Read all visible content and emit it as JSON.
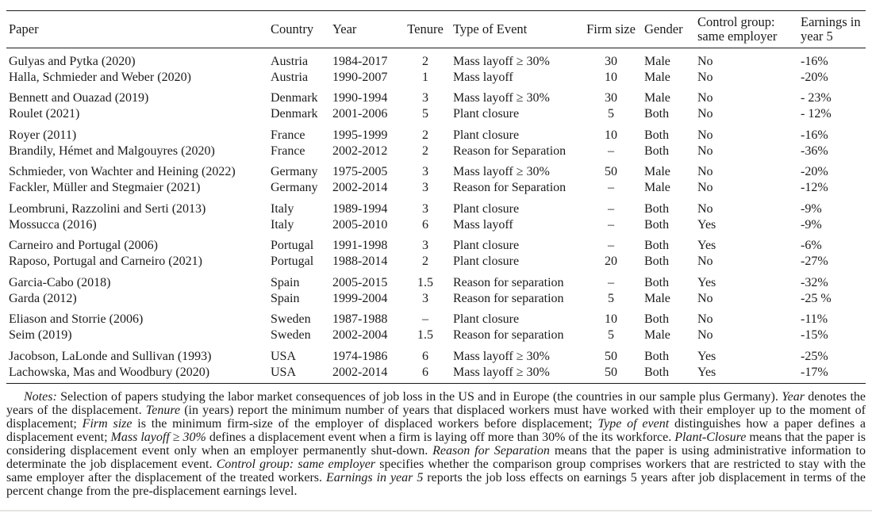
{
  "table": {
    "columns": [
      {
        "label": "Paper"
      },
      {
        "label": "Country"
      },
      {
        "label": "Year"
      },
      {
        "label": "Tenure"
      },
      {
        "label": "Type of Event"
      },
      {
        "label": "Firm size"
      },
      {
        "label": "Gender"
      },
      {
        "label": "Control group: same employer"
      },
      {
        "label": "Earnings in year 5"
      }
    ],
    "groups": [
      {
        "country": "Austria",
        "rows": [
          [
            "Gulyas and Pytka (2020)",
            "Austria",
            "1984-2017",
            "2",
            "Mass layoff ≥ 30%",
            "30",
            "Male",
            "No",
            "-16%"
          ],
          [
            "Halla, Schmieder and Weber (2020)",
            "Austria",
            "1990-2007",
            "1",
            "Mass layoff",
            "10",
            "Male",
            "No",
            "-20%"
          ]
        ]
      },
      {
        "country": "Denmark",
        "rows": [
          [
            "Bennett and Ouazad (2019)",
            "Denmark",
            "1990-1994",
            "3",
            "Mass layoff ≥ 30%",
            "30",
            "Male",
            "No",
            "- 23%"
          ],
          [
            "Roulet (2021)",
            "Denmark",
            "2001-2006",
            "5",
            "Plant closure",
            "5",
            "Both",
            "No",
            "- 12%"
          ]
        ]
      },
      {
        "country": "France",
        "rows": [
          [
            "Royer (2011)",
            "France",
            "1995-1999",
            "2",
            "Plant closure",
            "10",
            "Both",
            "No",
            "-16%"
          ],
          [
            "Brandily, Hémet and Malgouyres (2020)",
            "France",
            "2002-2012",
            "2",
            "Reason for Separation",
            "–",
            "Both",
            "No",
            "-36%"
          ]
        ]
      },
      {
        "country": "Germany",
        "rows": [
          [
            "Schmieder, von Wachter and Heining (2022)",
            "Germany",
            "1975-2005",
            "3",
            "Mass layoff ≥ 30%",
            "50",
            "Male",
            "No",
            "-20%"
          ],
          [
            "Fackler, Müller and Stegmaier (2021)",
            "Germany",
            "2002-2014",
            "3",
            "Reason for Separation",
            "–",
            "Male",
            "No",
            "-12%"
          ]
        ]
      },
      {
        "country": "Italy",
        "rows": [
          [
            "Leombruni, Razzolini and Serti (2013)",
            "Italy",
            "1989-1994",
            "3",
            "Plant closure",
            "–",
            "Both",
            "No",
            "-9%"
          ],
          [
            "Mossucca (2016)",
            "Italy",
            "2005-2010",
            "6",
            "Mass layoff",
            "–",
            "Both",
            "Yes",
            "-9%"
          ]
        ]
      },
      {
        "country": "Portugal",
        "rows": [
          [
            "Carneiro and Portugal (2006)",
            "Portugal",
            "1991-1998",
            "3",
            "Plant closure",
            "–",
            "Both",
            "Yes",
            "-6%"
          ],
          [
            "Raposo, Portugal and Carneiro (2021)",
            "Portugal",
            "1988-2014",
            "2",
            "Plant closure",
            "20",
            "Both",
            "No",
            "-27%"
          ]
        ]
      },
      {
        "country": "Spain",
        "rows": [
          [
            "Garcia-Cabo (2018)",
            "Spain",
            "2005-2015",
            "1.5",
            "Reason for separation",
            "–",
            "Both",
            "Yes",
            "-32%"
          ],
          [
            "Garda (2012)",
            "Spain",
            "1999-2004",
            "3",
            "Reason for separation",
            "5",
            "Male",
            "No",
            "-25 %"
          ]
        ]
      },
      {
        "country": "Sweden",
        "rows": [
          [
            "Eliason and Storrie (2006)",
            "Sweden",
            "1987-1988",
            "–",
            "Plant closure",
            "10",
            "Both",
            "No",
            "-11%"
          ],
          [
            "Seim (2019)",
            "Sweden",
            "2002-2004",
            "1.5",
            "Reason for separation",
            "5",
            "Male",
            "No",
            "-15%"
          ]
        ]
      },
      {
        "country": "USA",
        "rows": [
          [
            "Jacobson, LaLonde and Sullivan (1993)",
            "USA",
            "1974-1986",
            "6",
            "Mass layoff ≥ 30%",
            "50",
            "Both",
            "Yes",
            "-25%"
          ],
          [
            "Lachowska, Mas and Woodbury (2020)",
            "USA",
            "2002-2014",
            "6",
            "Mass layoff ≥ 30%",
            "50",
            "Both",
            "Yes",
            "-17%"
          ]
        ]
      }
    ]
  },
  "notes": {
    "segments": [
      {
        "t": "Notes:",
        "i": true
      },
      {
        "t": " Selection of papers studying the labor market consequences of job loss in the US and in Europe (the countries in our sample plus Germany). ",
        "i": false
      },
      {
        "t": "Year",
        "i": true
      },
      {
        "t": " denotes the years of the displacement. ",
        "i": false
      },
      {
        "t": "Tenure",
        "i": true
      },
      {
        "t": " (in years) report the minimum number of years that displaced workers must have worked with their employer up to the moment of displacement; ",
        "i": false
      },
      {
        "t": "Firm size",
        "i": true
      },
      {
        "t": " is the minimum firm-size of the employer of displaced workers before displacement; ",
        "i": false
      },
      {
        "t": "Type of event",
        "i": true
      },
      {
        "t": " distinguishes how a paper defines a displacement event; ",
        "i": false
      },
      {
        "t": "Mass layoff ≥ 30%",
        "i": true
      },
      {
        "t": " defines a displacement event when a firm is laying off more than 30% of the its workforce. ",
        "i": false
      },
      {
        "t": "Plant-Closure",
        "i": true
      },
      {
        "t": " means that the paper is considering displacement event only when an employer permanently shut-down. ",
        "i": false
      },
      {
        "t": "Reason for Separation",
        "i": true
      },
      {
        "t": " means that the paper is using administrative information to determinate the job displacement event. ",
        "i": false
      },
      {
        "t": "Control group: same employer",
        "i": true
      },
      {
        "t": " specifies whether the comparison group comprises workers that are restricted to stay with the same employer after the displacement of the treated workers. ",
        "i": false
      },
      {
        "t": "Earnings in year 5",
        "i": true
      },
      {
        "t": " reports the job loss effects on earnings 5 years after job displacement in terms of the percent change from the pre-displacement earnings level.",
        "i": false
      }
    ]
  }
}
